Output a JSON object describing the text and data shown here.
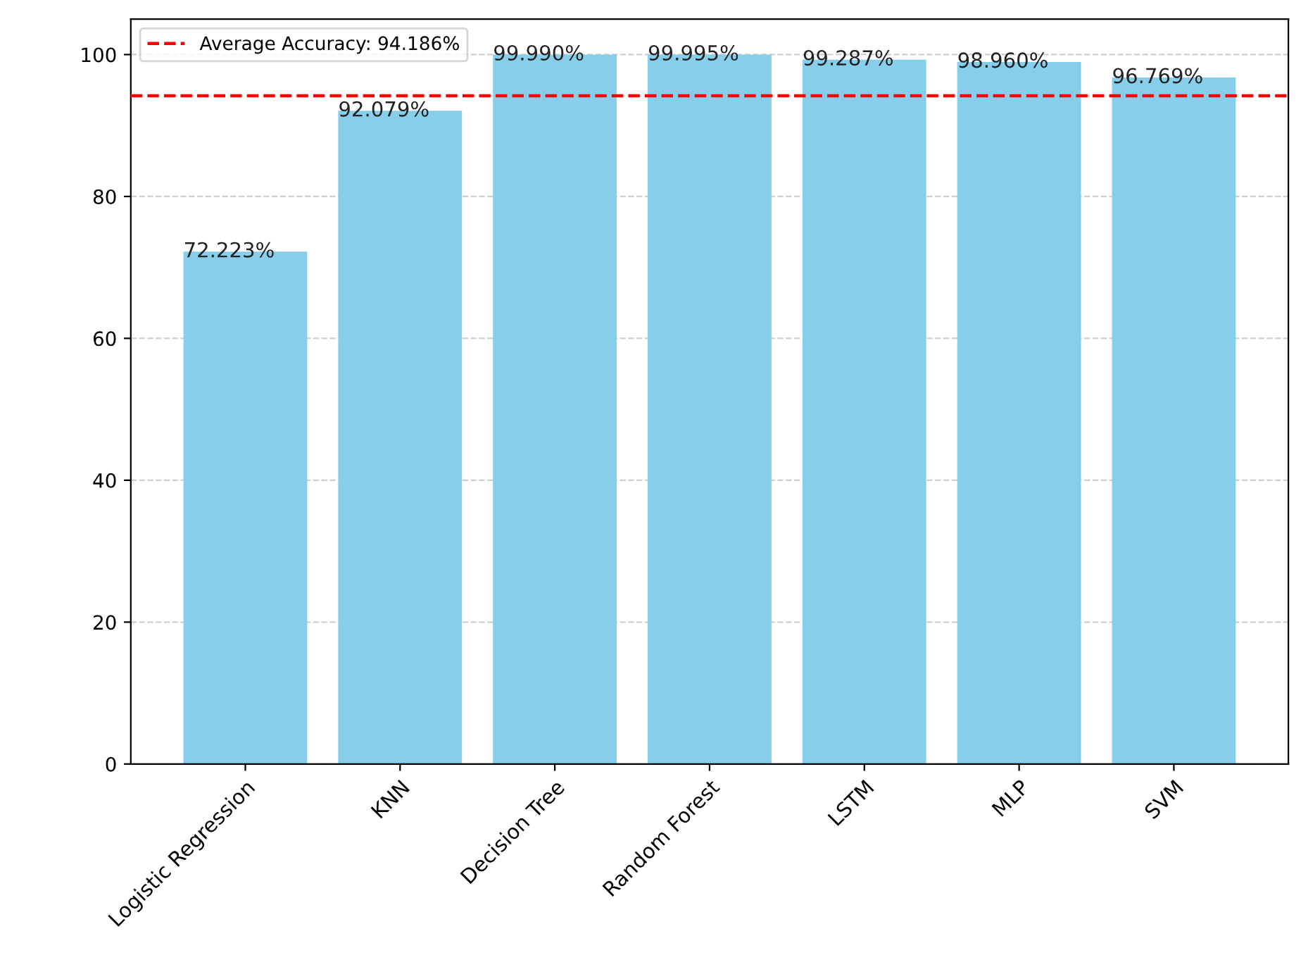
{
  "chart_data": {
    "type": "bar",
    "categories": [
      "Logistic Regression",
      "KNN",
      "Decision Tree",
      "Random Forest",
      "LSTM",
      "MLP",
      "SVM"
    ],
    "values": [
      72.223,
      92.079,
      99.99,
      99.995,
      99.287,
      98.96,
      96.769
    ],
    "value_labels": [
      "72.223%",
      "92.079%",
      "99.990%",
      "99.995%",
      "99.287%",
      "98.960%",
      "96.769%"
    ],
    "color": "#87ceeb",
    "ylim": [
      0,
      105
    ],
    "yticks": [
      0,
      20,
      40,
      60,
      80,
      100
    ],
    "grid": "y",
    "legend": "top left",
    "ref_lines": [
      {
        "axis": "y",
        "value": 94.186,
        "label": "Average Accuracy: 94.186%",
        "color": "#ff0000",
        "line_style": "dashed"
      }
    ]
  }
}
